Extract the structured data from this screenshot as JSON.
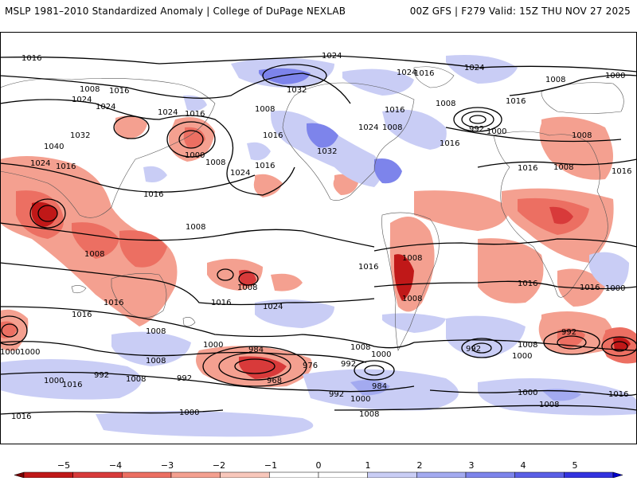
{
  "header": {
    "left_title": "MSLP 1981–2010 Standardized Anomaly | College of DuPage NEXLAB",
    "right_title": "00Z GFS | F279 Valid: 15Z THU NOV 27 2025"
  },
  "colorbar": {
    "ticks": [
      "−5",
      "−4",
      "−3",
      "−2",
      "−1",
      "0",
      "1",
      "2",
      "3",
      "4",
      "5"
    ],
    "colors": [
      "#7a0000",
      "#c01818",
      "#d83a3a",
      "#ec6f62",
      "#f4a090",
      "#f8c7bb",
      "#ffffff",
      "#ffffff",
      "#c9cdf5",
      "#a3aaf0",
      "#7d84eb",
      "#5a5fe6",
      "#3333e0",
      "#0000cc"
    ]
  },
  "map": {
    "isobar_labels": [
      "1016",
      "1024",
      "1024",
      "1008",
      "1016",
      "1032",
      "1000",
      "1024",
      "1024",
      "1008",
      "1016",
      "1032",
      "1040",
      "1024",
      "1016",
      "1008",
      "1024",
      "1016",
      "1008",
      "1016",
      "1016",
      "1000",
      "1032",
      "1024",
      "1008",
      "1016",
      "1024",
      "1016",
      "1008",
      "1016",
      "992",
      "1000",
      "1016",
      "1008",
      "1016",
      "1008",
      "1008",
      "1008",
      "1016",
      "1024",
      "1016",
      "1008",
      "1016",
      "1008",
      "1008",
      "1016",
      "1000",
      "984",
      "976",
      "968",
      "992",
      "992",
      "1000",
      "1008",
      "1000",
      "984",
      "992",
      "1000",
      "1000",
      "1000",
      "992",
      "1008",
      "1016",
      "1000",
      "1008",
      "1000",
      "1016",
      "1016",
      "1008",
      "1016",
      "1008",
      "992",
      "1008",
      "1000",
      "1000",
      "1016",
      "1024",
      "992",
      "1008",
      "1016"
    ]
  }
}
